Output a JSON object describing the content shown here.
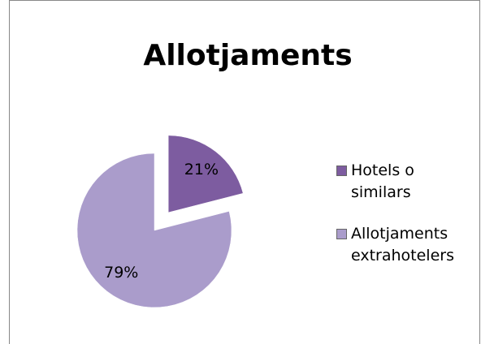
{
  "chart_data": {
    "type": "pie",
    "title": "Allotjaments",
    "categories": [
      "Hotels o similars",
      "Allotjaments extrahotelers"
    ],
    "values": [
      21,
      79
    ],
    "value_labels": [
      "21%",
      "79%"
    ],
    "colors": [
      "#7d5ca0",
      "#aa9ccb"
    ],
    "exploded": [
      true,
      false
    ],
    "legend": "right"
  }
}
